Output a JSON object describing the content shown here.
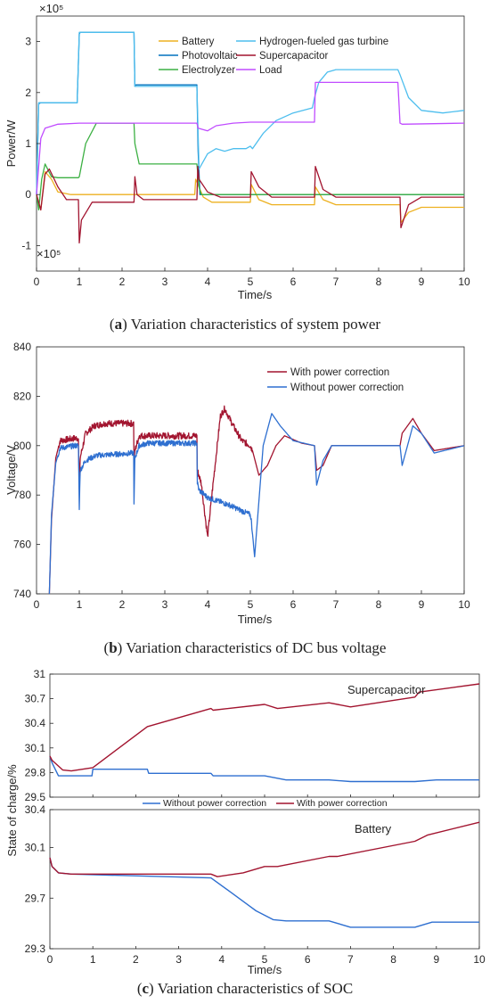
{
  "chart_data": [
    {
      "id": "a",
      "type": "line",
      "caption_letter": "a",
      "caption_text": "Variation characteristics of system power",
      "xlabel": "Time/s",
      "ylabel": "Power/W",
      "exponent_label": "×10⁵",
      "exponent_label_bottom": "×10⁵",
      "xlim": [
        0,
        10
      ],
      "ylim": [
        -1.5,
        3.5
      ],
      "xticks": [
        0,
        1,
        2,
        3,
        4,
        5,
        6,
        7,
        8,
        9,
        10
      ],
      "yticks": [
        -1,
        0,
        1,
        2,
        3
      ],
      "legend_position": "top-center",
      "series": [
        {
          "name": "Battery",
          "color": "#EDB120",
          "x": [
            0,
            0.1,
            0.2,
            0.35,
            0.5,
            0.8,
            1.0,
            2.3,
            3.7,
            3.72,
            3.9,
            4.1,
            5.0,
            5.02,
            5.2,
            5.5,
            6.5,
            6.52,
            6.7,
            7.0,
            8.5,
            8.52,
            8.7,
            9.0,
            10
          ],
          "y": [
            0,
            -0.3,
            0.45,
            0.3,
            0.05,
            0,
            0,
            0,
            0,
            0.3,
            -0.05,
            -0.15,
            -0.15,
            0.2,
            -0.1,
            -0.2,
            -0.2,
            0.15,
            -0.1,
            -0.2,
            -0.2,
            -0.55,
            -0.35,
            -0.25,
            -0.25
          ]
        },
        {
          "name": "Photovoltaic",
          "color": "#0072BD",
          "x": [
            0,
            0.05,
            0.1,
            0.95,
            1.0,
            1.02,
            2.28,
            2.3,
            2.32,
            3.75,
            3.78,
            3.82,
            10
          ],
          "y": [
            0,
            1.78,
            1.8,
            1.8,
            3.15,
            3.18,
            3.18,
            2.12,
            2.15,
            2.15,
            0.85,
            0,
            0
          ]
        },
        {
          "name": "Electrolyzer",
          "color": "#3CB043",
          "x": [
            0,
            0.05,
            0.12,
            0.2,
            0.35,
            0.5,
            0.98,
            1.0,
            1.15,
            1.4,
            2.28,
            2.3,
            2.4,
            3.75,
            3.8,
            3.85,
            10
          ],
          "y": [
            0,
            -0.3,
            0.3,
            0.6,
            0.35,
            0.33,
            0.33,
            0.35,
            1.0,
            1.4,
            1.4,
            1.0,
            0.6,
            0.6,
            0.15,
            0,
            0
          ]
        },
        {
          "name": "Hydrogen-fueled gas turbine",
          "color": "#4DBEEE",
          "x": [
            0,
            0.05,
            0.1,
            0.95,
            1.0,
            1.02,
            2.28,
            2.3,
            2.32,
            3.75,
            3.8,
            4.0,
            4.2,
            4.4,
            4.6,
            4.9,
            5.0,
            5.05,
            5.3,
            5.6,
            6.0,
            6.45,
            6.5,
            6.6,
            6.8,
            7.0,
            8.45,
            8.5,
            8.7,
            9.0,
            9.5,
            10
          ],
          "y": [
            0,
            1.8,
            1.8,
            1.8,
            3.18,
            3.18,
            3.18,
            2.12,
            2.12,
            2.12,
            0.5,
            0.8,
            0.9,
            0.85,
            0.9,
            0.9,
            0.95,
            0.9,
            1.2,
            1.45,
            1.6,
            1.7,
            1.9,
            2.2,
            2.4,
            2.45,
            2.45,
            2.35,
            1.9,
            1.65,
            1.6,
            1.65
          ]
        },
        {
          "name": "Supercapacitor",
          "color": "#A2142F",
          "x": [
            0,
            0.1,
            0.2,
            0.3,
            0.5,
            0.7,
            0.98,
            1.0,
            1.05,
            1.3,
            2.28,
            2.3,
            2.35,
            2.5,
            3.75,
            3.77,
            3.8,
            4.0,
            4.3,
            5.0,
            5.02,
            5.2,
            5.5,
            6.5,
            6.52,
            6.7,
            7.0,
            8.5,
            8.52,
            8.7,
            9.0,
            10
          ],
          "y": [
            0,
            -0.3,
            0.4,
            0.5,
            0.15,
            -0.1,
            -0.1,
            -0.95,
            -0.5,
            -0.15,
            -0.15,
            0.35,
            0.0,
            -0.1,
            -0.1,
            0.55,
            0.3,
            0.05,
            -0.05,
            -0.05,
            0.45,
            0.15,
            -0.05,
            -0.05,
            0.55,
            0.1,
            -0.05,
            -0.05,
            -0.65,
            -0.2,
            -0.05,
            -0.05
          ]
        },
        {
          "name": "Load",
          "color": "#C04CFF",
          "x": [
            0,
            0.1,
            0.2,
            0.5,
            1.0,
            3.75,
            3.78,
            4.0,
            4.2,
            4.6,
            5.0,
            6.5,
            6.52,
            6.6,
            8.45,
            8.5,
            8.55,
            10
          ],
          "y": [
            0,
            1.1,
            1.3,
            1.38,
            1.4,
            1.4,
            1.3,
            1.25,
            1.35,
            1.4,
            1.42,
            1.42,
            2.2,
            2.2,
            2.2,
            1.4,
            1.38,
            1.4
          ]
        }
      ]
    },
    {
      "id": "b",
      "type": "line",
      "caption_letter": "b",
      "caption_text": "Variation characteristics of DC bus voltage",
      "xlabel": "Time/s",
      "ylabel": "Voltage/V",
      "xlim": [
        0,
        10
      ],
      "ylim": [
        740,
        840
      ],
      "xticks": [
        0,
        1,
        2,
        3,
        4,
        5,
        6,
        7,
        8,
        9,
        10
      ],
      "yticks": [
        740,
        760,
        780,
        800,
        820,
        840
      ],
      "legend_position": "top-right",
      "series": [
        {
          "name": "With power correction",
          "color": "#A2142F",
          "noise": 1.2,
          "x": [
            0.3,
            0.35,
            0.45,
            0.55,
            0.9,
            0.98,
            1.0,
            1.02,
            1.15,
            1.35,
            1.6,
            2.27,
            2.28,
            2.3,
            2.4,
            2.6,
            3.75,
            3.76,
            3.85,
            4.0,
            4.1,
            4.3,
            4.4,
            4.6,
            4.8,
            5.0,
            5.05,
            5.2,
            5.4,
            5.6,
            5.8,
            6.2,
            6.5,
            6.55,
            6.7,
            6.9,
            7.2,
            8.0,
            8.5,
            8.55,
            8.8,
            9.0,
            9.3,
            10
          ],
          "y": [
            740,
            770,
            795,
            802,
            803,
            803,
            782,
            795,
            805,
            808,
            809,
            809,
            792,
            798,
            804,
            804,
            804,
            790,
            785,
            763,
            780,
            812,
            815,
            808,
            802,
            800,
            798,
            788,
            792,
            800,
            804,
            801,
            800,
            790,
            792,
            800,
            800,
            800,
            800,
            805,
            811,
            805,
            798,
            800
          ]
        },
        {
          "name": "Without power correction",
          "color": "#2E6FD0",
          "noise": 1.0,
          "x": [
            0.3,
            0.35,
            0.45,
            0.55,
            0.9,
            0.98,
            1.0,
            1.02,
            1.15,
            1.4,
            2.27,
            2.28,
            2.3,
            2.4,
            2.6,
            3.75,
            3.76,
            3.8,
            4.0,
            4.5,
            5.0,
            5.02,
            5.1,
            5.3,
            5.5,
            5.7,
            6.0,
            6.5,
            6.55,
            6.7,
            6.9,
            7.2,
            8.0,
            8.5,
            8.55,
            8.8,
            9.0,
            9.3,
            10
          ],
          "y": [
            740,
            772,
            793,
            799,
            800,
            800,
            775,
            790,
            794,
            796,
            797,
            776,
            795,
            800,
            801,
            801,
            785,
            782,
            779,
            776,
            772,
            770,
            755,
            800,
            813,
            808,
            802,
            800,
            784,
            794,
            800,
            800,
            800,
            800,
            792,
            808,
            805,
            797,
            800
          ]
        }
      ]
    },
    {
      "id": "c",
      "type": "line",
      "caption_letter": "c",
      "caption_text": "Variation characteristics of SOC",
      "xlabel": "Time/s",
      "ylabel": "State of charge/%",
      "xticks": [
        0,
        1,
        2,
        3,
        4,
        5,
        6,
        7,
        8,
        9,
        10
      ],
      "legend_position": "between-panels",
      "panels": [
        {
          "label": "Supercapacitor",
          "ylim": [
            29.5,
            31
          ],
          "yticks": [
            "29.5",
            "29.8",
            "30.1",
            "30.4",
            "30.7",
            "31"
          ]
        },
        {
          "label": "Battery",
          "ylim": [
            29.3,
            30.4
          ],
          "yticks": [
            "29.3",
            "29.7",
            "30.1",
            "30.4"
          ]
        }
      ],
      "series": [
        {
          "name": "Without power correction",
          "color": "#2E6FD0",
          "panel": 0,
          "x": [
            0,
            0.05,
            0.2,
            0.5,
            0.98,
            1.0,
            2.27,
            2.3,
            3.75,
            3.8,
            5.0,
            5.5,
            6.5,
            7.0,
            8.5,
            9.0,
            10
          ],
          "y": [
            30.0,
            29.92,
            29.76,
            29.76,
            29.76,
            29.84,
            29.84,
            29.79,
            29.79,
            29.76,
            29.76,
            29.71,
            29.71,
            29.69,
            29.69,
            29.71,
            29.71
          ]
        },
        {
          "name": "With power correction",
          "color": "#A2142F",
          "panel": 0,
          "x": [
            0,
            0.05,
            0.3,
            0.5,
            1.0,
            2.27,
            3.75,
            3.8,
            5.0,
            5.3,
            6.5,
            7.0,
            8.5,
            8.6,
            10
          ],
          "y": [
            30.0,
            29.95,
            29.83,
            29.82,
            29.86,
            30.36,
            30.58,
            30.56,
            30.63,
            30.58,
            30.65,
            30.6,
            30.72,
            30.78,
            30.88
          ]
        },
        {
          "name": "Without power correction",
          "color": "#2E6FD0",
          "panel": 1,
          "x": [
            0,
            0.05,
            0.2,
            0.5,
            3.75,
            4.2,
            4.8,
            5.2,
            5.5,
            6.5,
            7.0,
            8.5,
            8.9,
            10
          ],
          "y": [
            30.02,
            29.95,
            29.9,
            29.89,
            29.86,
            29.75,
            29.6,
            29.53,
            29.52,
            29.52,
            29.47,
            29.47,
            29.51,
            29.51
          ]
        },
        {
          "name": "With power correction",
          "color": "#A2142F",
          "panel": 1,
          "x": [
            0,
            0.05,
            0.2,
            0.5,
            3.75,
            3.9,
            4.5,
            5.0,
            5.3,
            6.5,
            6.7,
            8.5,
            8.8,
            10
          ],
          "y": [
            30.02,
            29.95,
            29.9,
            29.89,
            29.89,
            29.87,
            29.9,
            29.95,
            29.95,
            30.03,
            30.03,
            30.15,
            30.2,
            30.3
          ]
        }
      ]
    }
  ]
}
